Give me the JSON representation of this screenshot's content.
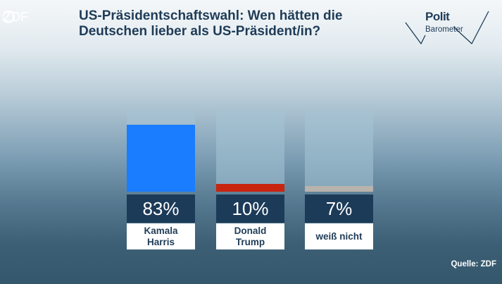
{
  "broadcaster": "ZDF",
  "title_lines": [
    "US-Präsidentschaftswahl: Wen hätten die",
    "Deutschen lieber als US-Präsident/in?"
  ],
  "brand": {
    "line1": "Polit",
    "line2": "Barometer"
  },
  "chart_data": {
    "type": "bar",
    "title": "US-Präsidentschaftswahl: Wen hätten die Deutschen lieber als US-Präsident/in?",
    "categories": [
      "Kamala Harris",
      "Donald Trump",
      "weiß nicht"
    ],
    "label_lines": [
      [
        "Kamala",
        "Harris"
      ],
      [
        "Donald",
        "Trump"
      ],
      [
        "weiß nicht"
      ]
    ],
    "values": [
      83,
      10,
      7
    ],
    "value_labels": [
      "83%",
      "10%",
      "7%"
    ],
    "colors": [
      "#1a7dff",
      "#c8240e",
      "#b8b3ad"
    ],
    "unit": "%",
    "ylim": [
      0,
      100
    ],
    "xlabel": "",
    "ylabel": ""
  },
  "source": "Quelle: ZDF"
}
